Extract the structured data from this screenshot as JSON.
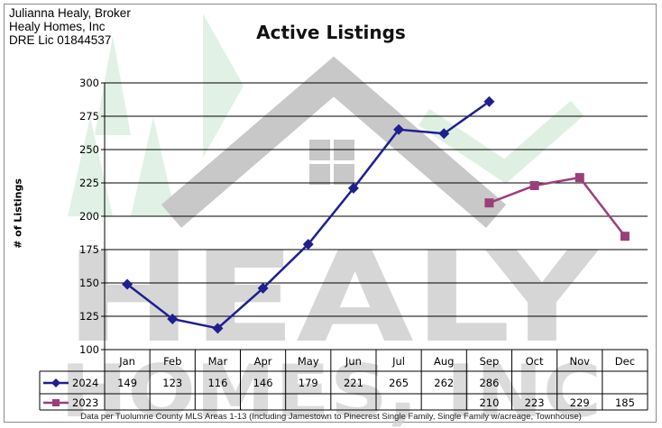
{
  "broker": {
    "name": "Julianna Healy, Broker",
    "company": "Healy Homes, Inc",
    "license": "DRE Lic 01844537"
  },
  "watermark": {
    "word1": "HEALY",
    "word2": "HOMES, INC"
  },
  "footnote": "Data per Tuolumne County MLS Areas 1-13 (Including Jamestown to Pinecrest Single Family, Single Family w/acreage, Townhouse)",
  "colors": {
    "series_2024": "#1f1f8f",
    "series_2023": "#9b3f7a",
    "watermark_gray": "#cfcfcf",
    "watermark_green": "#c9e6cf"
  },
  "chart_data": {
    "type": "line",
    "title": "Active Listings",
    "ylabel": "# of Listings",
    "xlabel": "",
    "ylim": [
      100,
      300
    ],
    "yticks": [
      100,
      125,
      150,
      175,
      200,
      225,
      250,
      275,
      300
    ],
    "grid": true,
    "legend": "data-table",
    "categories": [
      "Jan",
      "Feb",
      "Mar",
      "Apr",
      "May",
      "Jun",
      "Jul",
      "Aug",
      "Sep",
      "Oct",
      "Nov",
      "Dec"
    ],
    "series": [
      {
        "name": "2024",
        "values": [
          149,
          123,
          116,
          146,
          179,
          221,
          265,
          262,
          286,
          null,
          null,
          null
        ]
      },
      {
        "name": "2023",
        "values": [
          null,
          null,
          null,
          null,
          null,
          null,
          null,
          null,
          210,
          223,
          229,
          185
        ]
      }
    ]
  }
}
